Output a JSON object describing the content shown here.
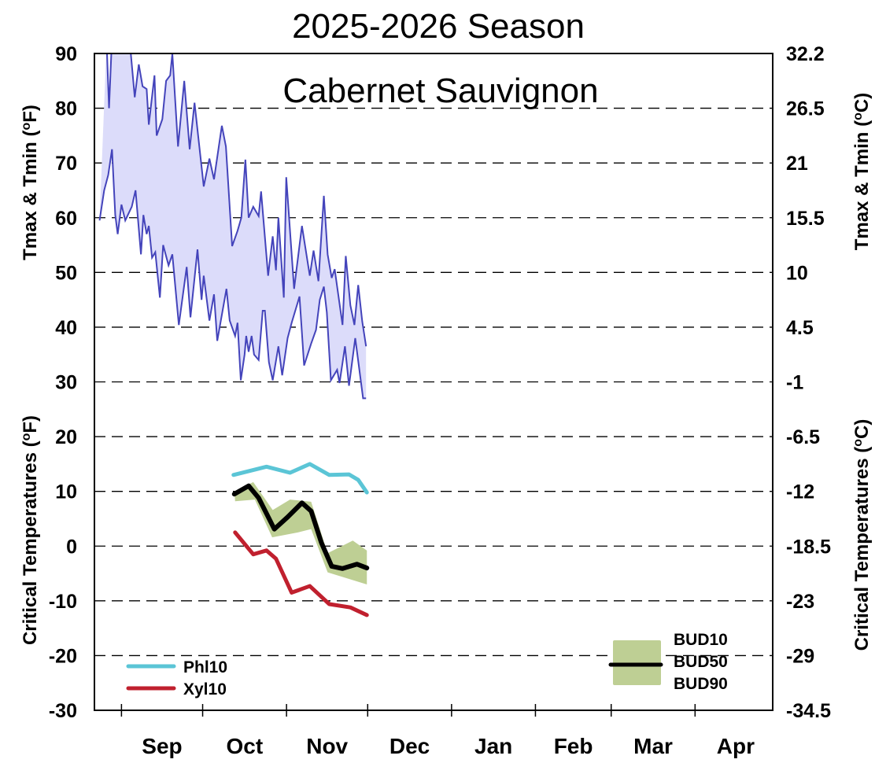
{
  "chart_data": {
    "type": "line",
    "title": "2025-2026 Season",
    "subtitle": "Cabernet Sauvignon",
    "x_unit": "days since Sep 1",
    "xlim": [
      -10,
      240.7
    ],
    "ylim": [
      -30,
      90
    ],
    "grid": true,
    "left_ylabel_top": "Tmax & Tmin (oF)",
    "left_ylabel_bottom": "Critical Temperatures (oF)",
    "right_ylabel_top": "Tmax & Tmin (oC)",
    "right_ylabel_bottom": "Critical Temperatures (oC)",
    "left_ticks": [
      "90",
      "80",
      "70",
      "60",
      "50",
      "40",
      "30",
      "20",
      "10",
      "0",
      "-10",
      "-20",
      "-30"
    ],
    "left_tick_values": [
      90,
      80,
      70,
      60,
      50,
      40,
      30,
      20,
      10,
      0,
      -10,
      -20,
      -30
    ],
    "right_ticks": [
      "32.2",
      "26.5",
      "21",
      "15.5",
      "10",
      "4.5",
      "-1",
      "-6.5",
      "-12",
      "-18.5",
      "-23",
      "-29",
      "-34.5"
    ],
    "months": [
      {
        "label": "Sep",
        "start": 0,
        "end": 30
      },
      {
        "label": "Oct",
        "start": 30,
        "end": 61
      },
      {
        "label": "Nov",
        "start": 61,
        "end": 91
      },
      {
        "label": "Dec",
        "start": 91,
        "end": 122
      },
      {
        "label": "Jan",
        "start": 122,
        "end": 153
      },
      {
        "label": "Feb",
        "start": 153,
        "end": 181
      },
      {
        "label": "Mar",
        "start": 181,
        "end": 212
      },
      {
        "label": "Apr",
        "start": 212,
        "end": 242
      }
    ],
    "colors": {
      "temp": "#4444bb",
      "temp_fill": "#dcdcfa",
      "phl": "#5bc5d6",
      "xyl": "#c0202e",
      "bud50": "#000000",
      "bud_band": "#becf94"
    },
    "tmax": {
      "x": [
        -5.5,
        -4.6,
        -3.5,
        -0.9,
        2.9,
        4.9,
        6.4,
        7.8,
        9.3,
        10.1,
        12.2,
        13.0,
        15.1,
        16.5,
        18.0,
        18.8,
        20.9,
        23.2,
        25.2,
        27.0,
        29.0,
        30.4,
        32.5,
        34.2,
        37.1,
        38.6,
        40.9,
        42.9,
        44.3,
        45.8,
        47.0,
        48.7,
        50.7,
        51.6,
        54.2,
        55.9,
        57.1,
        58.0,
        60.0,
        60.9,
        63.8,
        66.7,
        69.6,
        71.0,
        72.8,
        74.8,
        76.2,
        77.7,
        78.8,
        81.7,
        82.9,
        84.6,
        86.1,
        87.5,
        89.0,
        90.4
      ],
      "y": [
        92,
        80,
        93,
        92,
        93,
        82,
        88,
        84,
        83.5,
        77,
        86,
        75,
        78,
        85,
        86,
        90,
        73,
        85,
        72.5,
        81,
        72,
        65.7,
        70.8,
        67,
        76.8,
        73,
        54.8,
        57.6,
        60,
        70.6,
        60,
        62,
        60.3,
        64.8,
        49.4,
        56.6,
        50.4,
        60,
        45.4,
        67.4,
        47,
        58.5,
        49.4,
        54,
        48.4,
        64,
        53.3,
        49,
        50.6,
        40.4,
        53,
        44,
        40.4,
        47.7,
        41,
        36.5
      ]
    },
    "tmin": {
      "x": [
        -8.1,
        -6.4,
        -4.9,
        -3.5,
        -2.3,
        -1.4,
        0,
        1.4,
        3.8,
        5.2,
        7.2,
        8.1,
        9.3,
        10.1,
        11.3,
        12.5,
        14.2,
        15.4,
        17.4,
        18.8,
        21.2,
        24.1,
        25.5,
        28.1,
        29.6,
        30.4,
        32.5,
        34.2,
        35.4,
        38.8,
        40,
        42,
        42.9,
        44.1,
        45.5,
        46.1,
        47,
        48.1,
        49,
        50.7,
        52.2,
        53,
        54.5,
        55.9,
        58,
        59.4,
        61.4,
        62.9,
        65.8,
        67.5,
        70.1,
        71.9,
        73.3,
        74.8,
        75.9,
        77.4,
        79.7,
        80.6,
        82.6,
        84.1,
        86.4,
        89.3,
        90.4
      ],
      "y": [
        59.5,
        65,
        67.8,
        72.5,
        60.5,
        57,
        62.4,
        59.5,
        62,
        65,
        53.3,
        60.5,
        57,
        58.5,
        52.7,
        53.7,
        45.4,
        55,
        51.3,
        53.3,
        40.4,
        51,
        41.8,
        54.2,
        45,
        49.4,
        41.2,
        46,
        37.5,
        47,
        41.2,
        38.4,
        40.8,
        30.3,
        35,
        38.4,
        35.5,
        38.4,
        35,
        34,
        43,
        43,
        33.6,
        30.3,
        36.5,
        31.2,
        38,
        40.8,
        45.6,
        33,
        37,
        39.5,
        45,
        47.4,
        42.7,
        30.3,
        32.2,
        29.8,
        36.5,
        29.3,
        38,
        27,
        27
      ]
    },
    "series": [
      {
        "name": "Phl10",
        "x": [
          41.4,
          53.6,
          62.3,
          69.6,
          76.8,
          84.1,
          87.5,
          90.7
        ],
        "y": [
          13.0,
          14.5,
          13.4,
          15.0,
          13.0,
          13.1,
          12.1,
          9.8
        ]
      },
      {
        "name": "Xyl10",
        "x": [
          42,
          48.7,
          53.6,
          57.1,
          62.9,
          69.6,
          76.8,
          84.6,
          90.7
        ],
        "y": [
          2.5,
          -1.5,
          -0.8,
          -2.3,
          -8.5,
          -7.3,
          -10.6,
          -11.2,
          -12.6
        ]
      },
      {
        "name": "BUD50",
        "x": [
          41.7,
          47,
          50.7,
          56.5,
          61.4,
          66.7,
          70.1,
          73.9,
          77.7,
          81.7,
          87,
          90.7
        ],
        "y": [
          9.5,
          11,
          8.8,
          3.1,
          5.3,
          7.9,
          6.4,
          0.6,
          -3.7,
          -4.1,
          -3.3,
          -4
        ]
      },
      {
        "name": "BUD10",
        "x": [
          41.7,
          48.7,
          55.9,
          62.3,
          70.1,
          76.2,
          85.5,
          90.7
        ],
        "y": [
          10.0,
          11.7,
          6.6,
          8.5,
          8.1,
          -1.3,
          1.0,
          -0.8
        ]
      },
      {
        "name": "BUD90",
        "x": [
          42,
          49.3,
          55.7,
          65.2,
          70.1,
          76.2,
          90.7
        ],
        "y": [
          8.2,
          8.5,
          1.6,
          2.5,
          3.1,
          -4.8,
          -7.0
        ]
      }
    ],
    "legend_left": [
      "Phl10",
      "Xyl10"
    ],
    "legend_right": [
      "BUD10",
      "BUD50",
      "BUD90"
    ],
    "legend_placement": [
      "bottom-left",
      "bottom-right"
    ]
  }
}
